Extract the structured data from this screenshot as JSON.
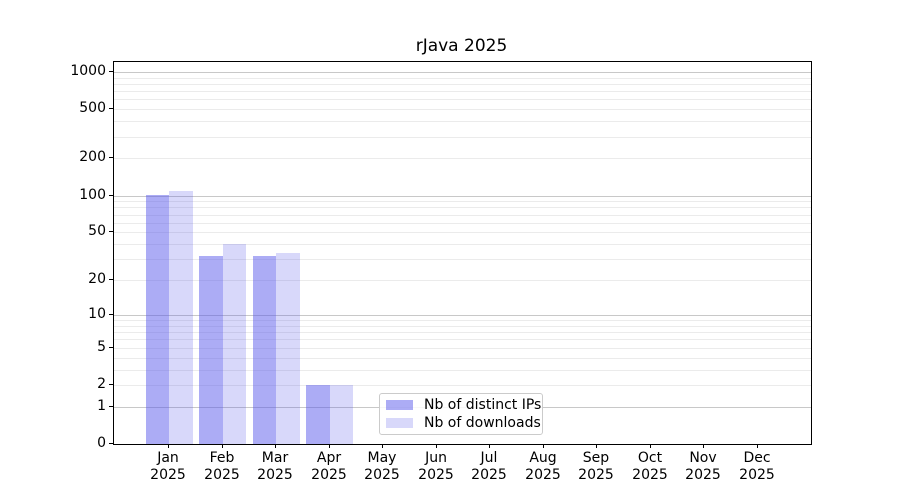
{
  "title": "rJava 2025",
  "legend": {
    "items": [
      {
        "label": "Nb of distinct IPs",
        "color": "rgba(85,85,235,0.49)"
      },
      {
        "label": "Nb of downloads",
        "color": "rgba(85,85,235,0.23)"
      }
    ]
  },
  "x_axis": {
    "months": [
      "Jan",
      "Feb",
      "Mar",
      "Apr",
      "May",
      "Jun",
      "Jul",
      "Aug",
      "Sep",
      "Oct",
      "Nov",
      "Dec"
    ],
    "year": "2025"
  },
  "chart_data": {
    "type": "bar",
    "title": "rJava 2025",
    "categories": [
      "Jan 2025",
      "Feb 2025",
      "Mar 2025",
      "Apr 2025",
      "May 2025",
      "Jun 2025",
      "Jul 2025",
      "Aug 2025",
      "Sep 2025",
      "Oct 2025",
      "Nov 2025",
      "Dec 2025"
    ],
    "series": [
      {
        "name": "Nb of distinct IPs",
        "values": [
          101,
          32,
          32,
          2,
          0,
          0,
          0,
          0,
          0,
          0,
          0,
          0
        ]
      },
      {
        "name": "Nb of downloads",
        "values": [
          110,
          40,
          34,
          2,
          0,
          0,
          0,
          0,
          0,
          0,
          0,
          0
        ]
      }
    ],
    "y_scale": "log1p",
    "y_ticks": [
      1000,
      500,
      200,
      100,
      50,
      20,
      10,
      5,
      2,
      1,
      0
    ],
    "ylim": [
      0,
      1190
    ],
    "grid": "horizontal log major+minor",
    "legend_position": "inside bottom-center"
  },
  "colors": {
    "bar_ips": "rgba(85,85,235,0.49)",
    "bar_downloads": "rgba(85,85,235,0.23)",
    "grid_major": "#c8c8c8",
    "grid_minor": "#ebebeb",
    "axis": "#000000",
    "background": "#ffffff"
  }
}
